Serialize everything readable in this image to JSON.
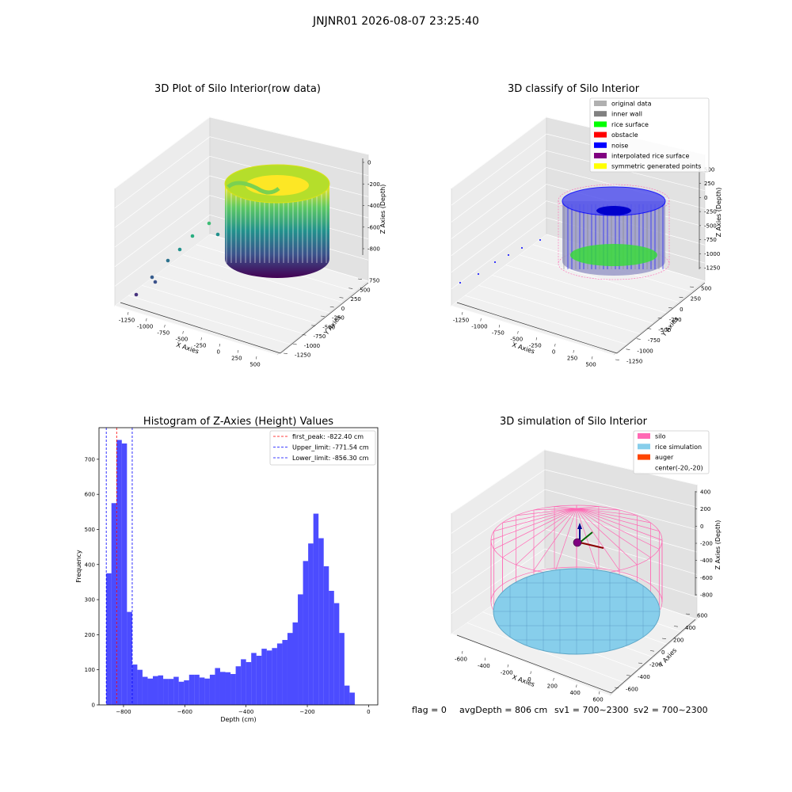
{
  "figure": {
    "suptitle": "JNJNR01 2026-08-07 23:25:40",
    "footer": {
      "flag": "flag = 0",
      "avg": "avgDepth = 806 cm",
      "sv1": "sv1 = 700~2300",
      "sv2": "sv2 = 700~2300"
    }
  },
  "panels": {
    "raw": {
      "title": "3D Plot of Silo Interior(row data)",
      "xlabel": "X Axies",
      "ylabel": "Y Axies",
      "zlabel": "Z Axies (Depth)",
      "xticks": [
        "-1250",
        "-1000",
        "-750",
        "-500",
        "-250",
        "0",
        "250",
        "500"
      ],
      "yticks": [
        "750",
        "500",
        "250",
        "0",
        "-250",
        "-500",
        "-750",
        "-1000",
        "-1250"
      ],
      "zticks": [
        "0",
        "-200",
        "-400",
        "-600",
        "-800"
      ],
      "colormap": [
        "#440154",
        "#3b528b",
        "#21918c",
        "#5ec962",
        "#fde725"
      ]
    },
    "classify": {
      "title": "3D classify of Silo Interior",
      "xlabel": "X Axies",
      "ylabel": "Y Axies",
      "zlabel": "Z Axies (Depth)",
      "xticks": [
        "-1250",
        "-1000",
        "-750",
        "-500",
        "-250",
        "0",
        "250",
        "500"
      ],
      "yticks": [
        "500",
        "250",
        "0",
        "-250",
        "-500",
        "-750",
        "-1000",
        "-1250"
      ],
      "zticks": [
        "500",
        "250",
        "0",
        "-250",
        "-500",
        "-750",
        "-1000",
        "-1250"
      ],
      "legend": [
        {
          "label": "original data",
          "color": "#b0b0b0"
        },
        {
          "label": "inner wall",
          "color": "#808080"
        },
        {
          "label": "rice surface",
          "color": "#00ff00"
        },
        {
          "label": "obstacle",
          "color": "#ff0000"
        },
        {
          "label": "noise",
          "color": "#0000ff"
        },
        {
          "label": "interpolated rice surface",
          "color": "#800080"
        },
        {
          "label": "symmetric generated points",
          "color": "#ffff00"
        }
      ]
    },
    "simulation": {
      "title": "3D simulation of Silo Interior",
      "xlabel": "X Axies",
      "ylabel": "Y Axies",
      "zlabel": "Z Axies (Depth)",
      "xticks": [
        "-600",
        "-400",
        "-200",
        "0",
        "200",
        "400",
        "600"
      ],
      "yticks": [
        "600",
        "400",
        "200",
        "0",
        "-200",
        "-400",
        "-600"
      ],
      "zticks": [
        "400",
        "200",
        "0",
        "-200",
        "-400",
        "-600",
        "-800"
      ],
      "legend": [
        {
          "label": "silo",
          "color": "#ff69b4"
        },
        {
          "label": "rice simulation",
          "color": "#87ceeb"
        },
        {
          "label": "auger",
          "color": "#ff4500"
        },
        {
          "label": "center(-20,-20)",
          "color": "none"
        }
      ]
    }
  },
  "chart_data": {
    "type": "bar",
    "title": "Histogram of Z-Axies (Height) Values",
    "xlabel": "Depth (cm)",
    "ylabel": "Frequency",
    "xlim": [
      -880,
      30
    ],
    "ylim": [
      0,
      790
    ],
    "xticks": [
      -800,
      -600,
      -400,
      -200,
      0
    ],
    "yticks": [
      0,
      100,
      200,
      300,
      400,
      500,
      600,
      700
    ],
    "bar_color": "#0000ff",
    "bin_edges_start": -856.3,
    "bin_width": 16.9,
    "values": [
      375,
      575,
      755,
      745,
      265,
      115,
      100,
      80,
      75,
      82,
      84,
      74,
      74,
      80,
      66,
      70,
      86,
      86,
      78,
      75,
      86,
      105,
      94,
      93,
      88,
      110,
      130,
      122,
      148,
      140,
      160,
      155,
      162,
      175,
      185,
      205,
      235,
      315,
      410,
      460,
      545,
      475,
      395,
      325,
      290,
      205,
      55,
      35
    ],
    "legend_position": "top-right",
    "lines": [
      {
        "label": "first_peak: -822.40 cm",
        "x": -822.4,
        "color": "#ff0000"
      },
      {
        "label": "Upper_limit: -771.54 cm",
        "x": -771.54,
        "color": "#0000ff"
      },
      {
        "label": "Lower_limit: -856.30 cm",
        "x": -856.3,
        "color": "#0000ff"
      }
    ]
  }
}
